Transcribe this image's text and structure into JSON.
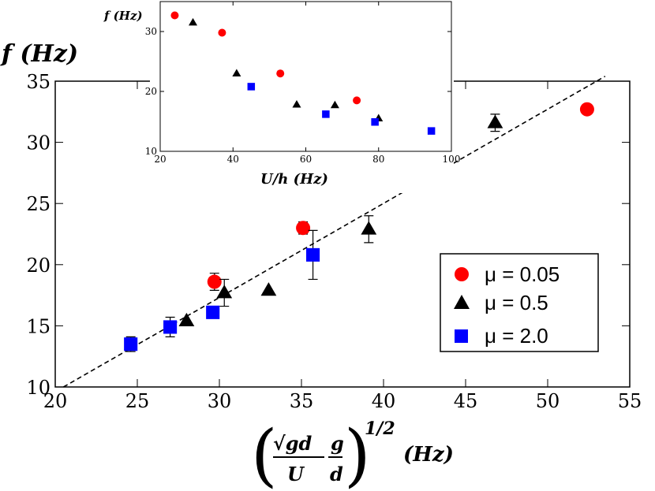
{
  "chart_data": [
    {
      "id": "main",
      "type": "scatter",
      "title": "",
      "xlabel_parts": {
        "sqrt": "√gd",
        "denom1": "U",
        "num2": "g",
        "denom2": "d",
        "exponent": "1/2",
        "unit": "(Hz)"
      },
      "ylabel": "f (Hz)",
      "xlim": [
        20,
        55
      ],
      "ylim": [
        10,
        35
      ],
      "xticks": [
        20,
        25,
        30,
        35,
        40,
        45,
        50,
        55
      ],
      "yticks": [
        10,
        15,
        20,
        25,
        30,
        35
      ],
      "grid": false,
      "legend_position": "right",
      "series": [
        {
          "name": "μ = 0.05",
          "marker": "circle",
          "color": "#ff0000",
          "x": [
            29.7,
            35.1,
            52.4
          ],
          "y": [
            18.6,
            23.0,
            32.7
          ],
          "err": [
            0.7,
            0.5,
            0.0
          ]
        },
        {
          "name": "μ = 0.5",
          "marker": "triangle",
          "color": "#000000",
          "x": [
            28.0,
            30.3,
            33.0,
            39.1,
            46.8
          ],
          "y": [
            15.4,
            17.7,
            17.9,
            22.9,
            31.6
          ],
          "err": [
            0.0,
            1.1,
            0.0,
            1.1,
            0.7
          ]
        },
        {
          "name": "μ = 2.0",
          "marker": "square",
          "color": "#0000ff",
          "x": [
            24.6,
            27.0,
            29.6,
            35.7
          ],
          "y": [
            13.5,
            14.9,
            16.1,
            20.8
          ],
          "err": [
            0.6,
            0.8,
            0.4,
            2.0
          ]
        }
      ],
      "fit_line": {
        "style": "dashed",
        "x": [
          20.5,
          53.5
        ],
        "y": [
          10.0,
          35.4
        ]
      }
    },
    {
      "id": "inset",
      "type": "scatter",
      "xlabel": "U/h (Hz)",
      "ylabel": "f (Hz)",
      "xlim": [
        20,
        100
      ],
      "ylim": [
        10,
        35
      ],
      "xticks": [
        20,
        40,
        60,
        80,
        100
      ],
      "yticks": [
        10,
        20,
        30
      ],
      "series": [
        {
          "name": "μ = 0.05",
          "marker": "circle",
          "color": "#ff0000",
          "x": [
            24.0,
            37.0,
            53.0,
            74.0
          ],
          "y": [
            32.7,
            29.8,
            23.0,
            18.5
          ]
        },
        {
          "name": "μ = 0.5",
          "marker": "triangle",
          "color": "#000000",
          "x": [
            29.0,
            41.0,
            57.5,
            68.0,
            80.0
          ],
          "y": [
            31.5,
            23.0,
            17.8,
            17.7,
            15.5
          ]
        },
        {
          "name": "μ = 2.0",
          "marker": "square",
          "color": "#0000ff",
          "x": [
            45.0,
            65.5,
            79.0,
            94.5
          ],
          "y": [
            20.8,
            16.2,
            14.9,
            13.4
          ]
        }
      ]
    }
  ]
}
